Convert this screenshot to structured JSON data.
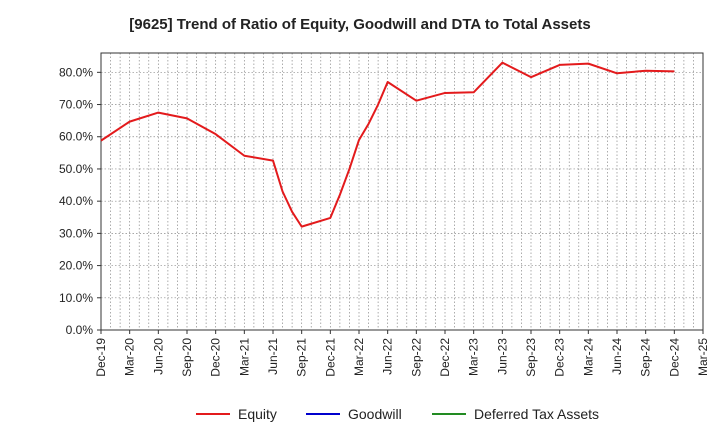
{
  "chart_data": {
    "type": "line",
    "title": "[9625]  Trend of Ratio of Equity, Goodwill and DTA to Total Assets",
    "x": [
      "Dec-19",
      "Jan-20",
      "Feb-20",
      "Mar-20",
      "Apr-20",
      "May-20",
      "Jun-20",
      "Jul-20",
      "Aug-20",
      "Sep-20",
      "Oct-20",
      "Nov-20",
      "Dec-20",
      "Jan-21",
      "Feb-21",
      "Mar-21",
      "Apr-21",
      "May-21",
      "Jun-21",
      "Jul-21",
      "Aug-21",
      "Sep-21",
      "Oct-21",
      "Nov-21",
      "Dec-21",
      "Jan-22",
      "Feb-22",
      "Mar-22",
      "Apr-22",
      "May-22",
      "Jun-22",
      "Jul-22",
      "Aug-22",
      "Sep-22",
      "Oct-22",
      "Nov-22",
      "Dec-22",
      "Jan-23",
      "Feb-23",
      "Mar-23",
      "Apr-23",
      "May-23",
      "Jun-23",
      "Jul-23",
      "Aug-23",
      "Sep-23",
      "Oct-23",
      "Nov-23",
      "Dec-23",
      "Jan-24",
      "Feb-24",
      "Mar-24",
      "Apr-24",
      "May-24",
      "Jun-24",
      "Jul-24",
      "Aug-24",
      "Sep-24",
      "Oct-24",
      "Nov-24",
      "Dec-24",
      "Jan-25",
      "Feb-25",
      "Mar-25"
    ],
    "xticks": [
      "Dec-19",
      "Mar-20",
      "Jun-20",
      "Sep-20",
      "Dec-20",
      "Mar-21",
      "Jun-21",
      "Sep-21",
      "Dec-21",
      "Mar-22",
      "Jun-22",
      "Sep-22",
      "Dec-22",
      "Mar-23",
      "Jun-23",
      "Sep-23",
      "Dec-23",
      "Mar-24",
      "Jun-24",
      "Sep-24",
      "Dec-24",
      "Mar-25"
    ],
    "yticks": [
      "0.0%",
      "10.0%",
      "20.0%",
      "30.0%",
      "40.0%",
      "50.0%",
      "60.0%",
      "70.0%",
      "80.0%"
    ],
    "ylim": [
      0,
      86
    ],
    "series": [
      {
        "name": "Equity",
        "color": "#e31a1c",
        "points": [
          [
            "Dec-19",
            58.8
          ],
          [
            "Mar-20",
            64.7
          ],
          [
            "Jun-20",
            67.5
          ],
          [
            "Sep-20",
            65.7
          ],
          [
            "Dec-20",
            60.8
          ],
          [
            "Mar-21",
            54.1
          ],
          [
            "Jun-21",
            52.6
          ],
          [
            "Jul-21",
            43.0
          ],
          [
            "Aug-21",
            36.7
          ],
          [
            "Sep-21",
            32.1
          ],
          [
            "Dec-21",
            34.8
          ],
          [
            "Jan-22",
            42.0
          ],
          [
            "Feb-22",
            50.0
          ],
          [
            "Mar-22",
            59.0
          ],
          [
            "Apr-22",
            64.0
          ],
          [
            "May-22",
            70.0
          ],
          [
            "Jun-22",
            77.0
          ],
          [
            "Sep-22",
            71.2
          ],
          [
            "Dec-22",
            73.6
          ],
          [
            "Mar-23",
            73.8
          ],
          [
            "Jun-23",
            83.0
          ],
          [
            "Sep-23",
            78.5
          ],
          [
            "Dec-23",
            82.3
          ],
          [
            "Mar-24",
            82.7
          ],
          [
            "Jun-24",
            79.7
          ],
          [
            "Sep-24",
            80.5
          ],
          [
            "Dec-24",
            80.3
          ]
        ]
      },
      {
        "name": "Goodwill",
        "color": "#0000cd",
        "points": []
      },
      {
        "name": "Deferred Tax Assets",
        "color": "#228b22",
        "points": []
      }
    ],
    "grid": true,
    "legend_position": "bottom"
  }
}
